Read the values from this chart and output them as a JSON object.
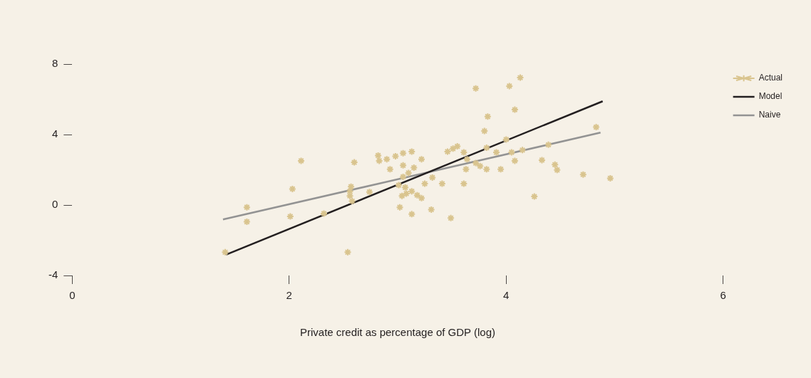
{
  "chart_data": {
    "type": "scatter",
    "xlabel": "Private credit as percentage of GDP (log)",
    "xlim": [
      0,
      6
    ],
    "xticks": [
      0,
      2,
      4,
      6
    ],
    "ylim": [
      -4,
      8
    ],
    "yticks": [
      -4,
      0,
      4,
      8
    ],
    "grid": false,
    "legend": "top right",
    "marker": "cross",
    "series": [
      {
        "name": "Actual",
        "type": "scatter",
        "color": "#d9c48e",
        "x": [
          1.41,
          1.61,
          1.61,
          2.03,
          2.01,
          2.11,
          2.32,
          2.54,
          2.57,
          2.56,
          2.56,
          2.58,
          2.6,
          2.74,
          2.82,
          2.83,
          2.9,
          2.93,
          2.98,
          3.05,
          3.13,
          3.05,
          3.15,
          3.1,
          3.22,
          3.05,
          3.01,
          3.07,
          3.13,
          3.08,
          3.04,
          3.18,
          3.22,
          3.02,
          3.13,
          3.31,
          3.25,
          3.32,
          3.41,
          3.49,
          3.46,
          3.51,
          3.55,
          3.61,
          3.64,
          3.61,
          3.63,
          3.72,
          3.72,
          3.76,
          3.82,
          3.8,
          3.83,
          3.82,
          3.91,
          3.95,
          4.0,
          4.03,
          4.08,
          4.13,
          4.05,
          4.08,
          4.15,
          4.26,
          4.33,
          4.39,
          4.45,
          4.47,
          4.71,
          4.83,
          4.96
        ],
        "values": [
          -2.68,
          -0.13,
          -0.95,
          0.91,
          -0.65,
          2.51,
          -0.48,
          -2.68,
          1.04,
          0.78,
          0.52,
          0.22,
          2.42,
          0.74,
          2.81,
          2.51,
          2.6,
          2.03,
          2.77,
          2.94,
          3.03,
          2.25,
          2.12,
          1.82,
          2.6,
          1.6,
          1.13,
          1.0,
          0.78,
          0.65,
          0.52,
          0.56,
          0.39,
          -0.13,
          -0.52,
          -0.26,
          1.21,
          1.56,
          1.21,
          -0.74,
          3.03,
          3.2,
          3.33,
          2.99,
          2.6,
          1.21,
          2.03,
          6.62,
          2.38,
          2.21,
          2.03,
          4.2,
          5.02,
          3.25,
          2.99,
          2.03,
          3.72,
          6.75,
          5.41,
          7.23,
          2.99,
          2.51,
          3.12,
          0.48,
          2.55,
          3.42,
          2.29,
          1.99,
          1.73,
          4.42,
          1.52
        ]
      },
      {
        "name": "Model",
        "type": "line",
        "color": "#231f20",
        "x": [
          1.42,
          4.89
        ],
        "values": [
          -2.81,
          5.89
        ],
        "marker": "none",
        "line_style": "solid"
      },
      {
        "name": "Naive",
        "type": "line",
        "color": "#939393",
        "x": [
          1.39,
          4.87
        ],
        "values": [
          -0.82,
          4.11
        ],
        "marker": "none",
        "line_style": "solid"
      }
    ]
  }
}
